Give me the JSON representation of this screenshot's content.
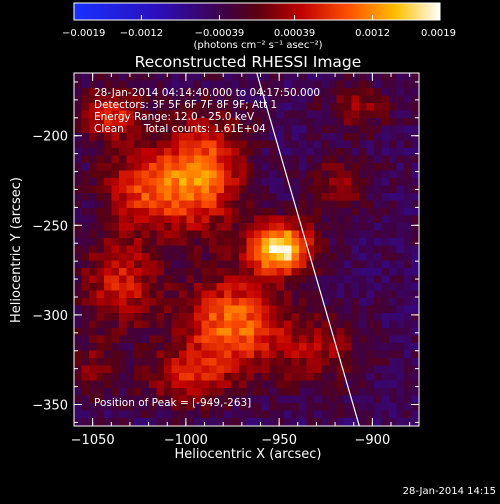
{
  "chart_data": {
    "type": "heatmap",
    "title": "Reconstructed RHESSI Image",
    "xlabel": "Heliocentric X (arcsec)",
    "ylabel": "Heliocentric Y (arcsec)",
    "xlim": [
      -1060,
      -875
    ],
    "ylim": [
      -362,
      -165
    ],
    "x_ticks": [
      -1050,
      -1000,
      -950,
      -900
    ],
    "x_tick_labels": [
      "−1050",
      "−1000",
      "−950",
      "−900"
    ],
    "y_ticks": [
      -200,
      -250,
      -300,
      -350
    ],
    "y_tick_labels": [
      "−200",
      "−250",
      "−300",
      "−350"
    ],
    "colorbar": {
      "min": -0.0019,
      "max": 0.0019,
      "ticks": [
        -0.0019,
        -0.0012,
        -0.00039,
        0.00039,
        0.0012,
        0.0019
      ],
      "tick_labels": [
        "−0.0019",
        "−0.0012",
        "−0.00039",
        "0.00039",
        "0.0012",
        "0.0019"
      ],
      "units": "(photons cm⁻² s⁻¹ asec⁻²)",
      "colormap": "blue-purple-red-yellow-white"
    },
    "overlay_text": [
      "28-Jan-2014 04:14:40.000 to 04:17:50.000",
      "Detectors: 3F 5F 6F 7F 8F 9F; Att 1",
      "Energy Range: 12.0 - 25.0 keV",
      "Clean      Total counts: 1.61E+04"
    ],
    "peak_label": "Position of Peak = [-949,-263]",
    "peak_position": [
      -949,
      -263
    ],
    "limb_line": [
      [
        -962,
        -165
      ],
      [
        -907,
        -362
      ]
    ],
    "sources": [
      {
        "x": -949,
        "y": -263,
        "sx": 12,
        "sy": 10,
        "a": 1.0
      },
      {
        "x": -990,
        "y": -220,
        "sx": 15,
        "sy": 22,
        "a": 0.62
      },
      {
        "x": -1020,
        "y": -230,
        "sx": 17,
        "sy": 16,
        "a": 0.55
      },
      {
        "x": -975,
        "y": -305,
        "sx": 18,
        "sy": 18,
        "a": 0.68
      },
      {
        "x": -1035,
        "y": -282,
        "sx": 15,
        "sy": 18,
        "a": 0.45
      },
      {
        "x": -1040,
        "y": -188,
        "sx": 12,
        "sy": 10,
        "a": 0.48
      },
      {
        "x": -1000,
        "y": -335,
        "sx": 16,
        "sy": 12,
        "a": 0.4
      },
      {
        "x": -930,
        "y": -320,
        "sx": 17,
        "sy": 14,
        "a": 0.32
      },
      {
        "x": -918,
        "y": -228,
        "sx": 12,
        "sy": 12,
        "a": 0.28
      },
      {
        "x": -908,
        "y": -185,
        "sx": 12,
        "sy": 9,
        "a": 0.3
      },
      {
        "x": -1050,
        "y": -330,
        "sx": 8,
        "sy": 12,
        "a": 0.25
      }
    ],
    "background_level": -0.05
  },
  "footer_date": "28-Jan-2014 14:15"
}
